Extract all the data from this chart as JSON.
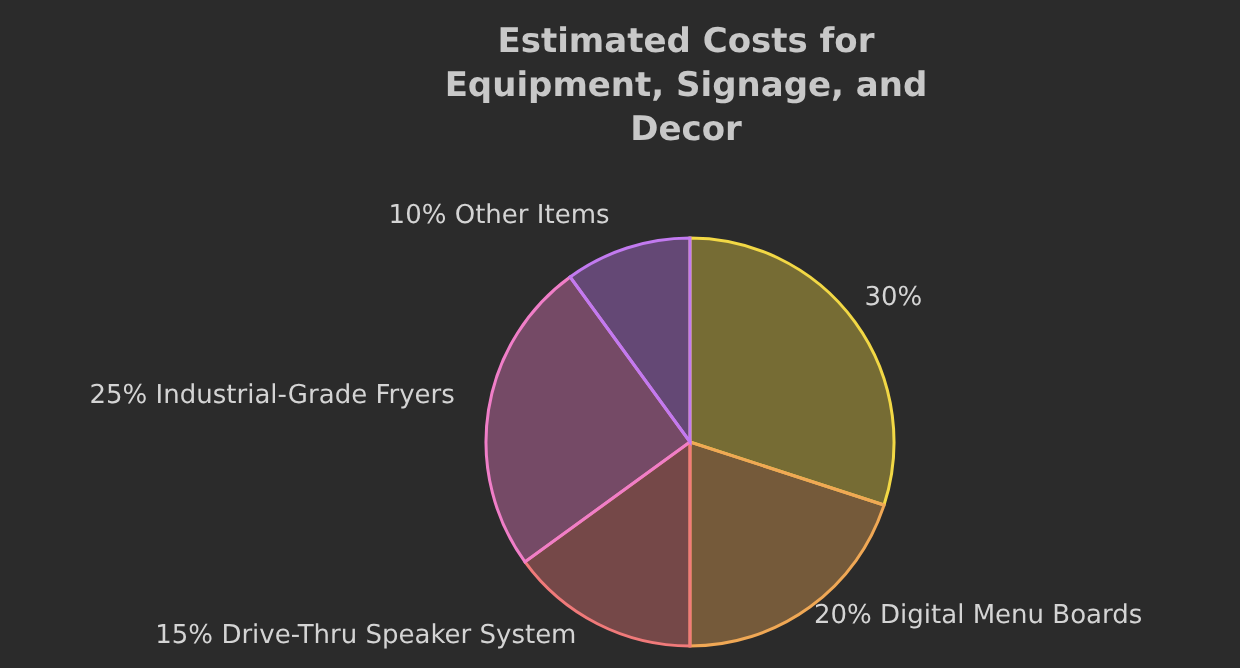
{
  "chart_data": {
    "type": "pie",
    "title": "Estimated Costs for Equipment, Signage, and Decor",
    "categories": [
      null,
      "Digital Menu Boards",
      "Drive-Thru Speaker System",
      "Industrial-Grade Fryers",
      "Other Items"
    ],
    "values": [
      30,
      20,
      15,
      25,
      10
    ],
    "colors": [
      "#f2d845",
      "#f0a855",
      "#f07a7a",
      "#f07ec8",
      "#c27af0"
    ],
    "value_labels": [
      "30%",
      "20%",
      "15%",
      "25%",
      "10%"
    ]
  }
}
